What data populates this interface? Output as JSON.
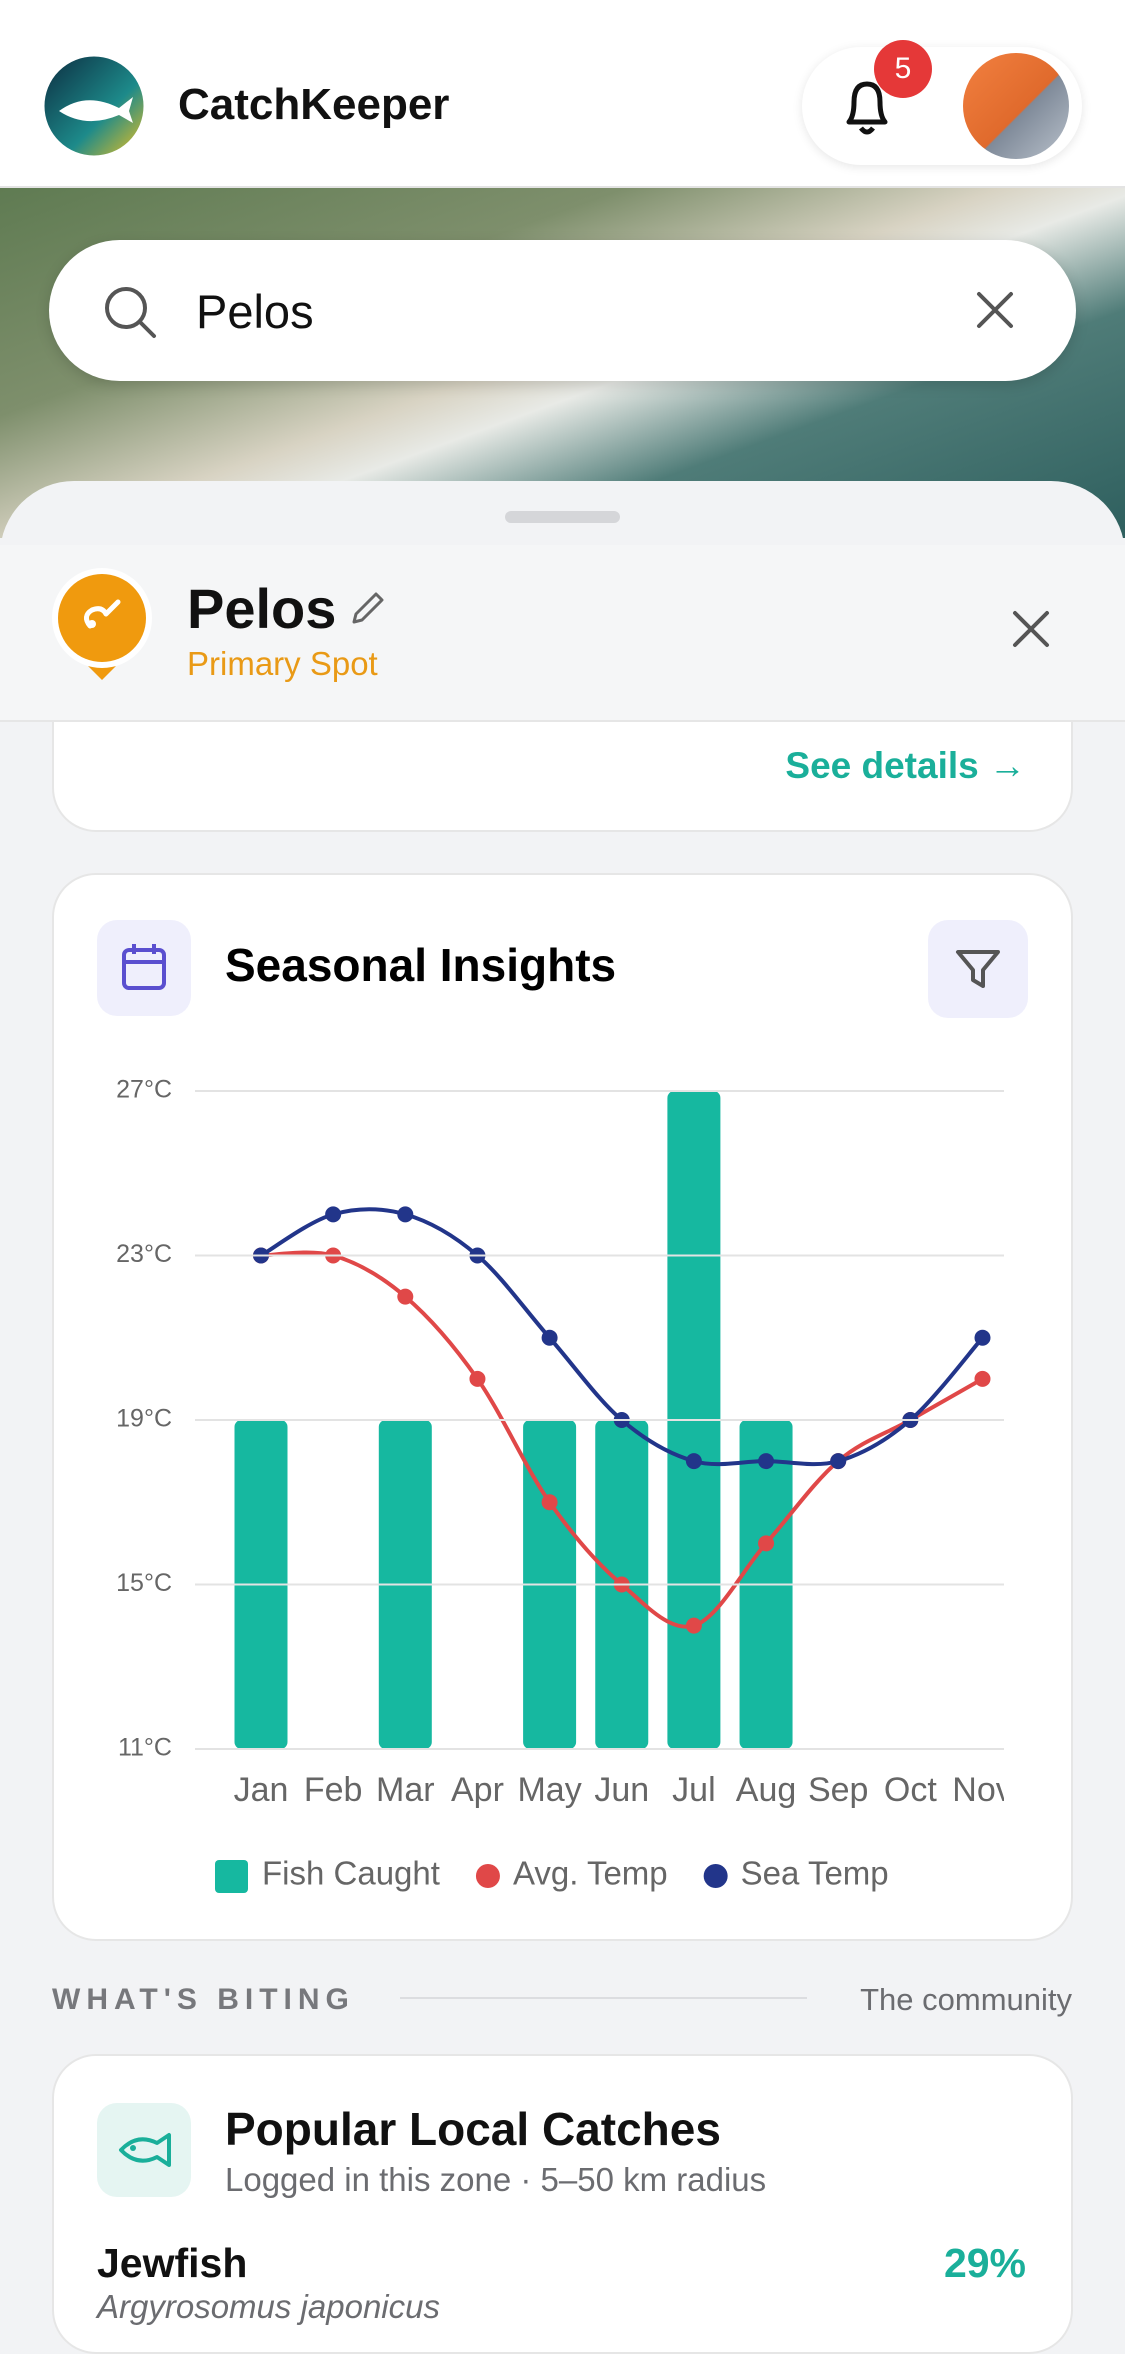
{
  "header": {
    "app_name": "CatchKeeper",
    "notification_count": 5
  },
  "search": {
    "query": "Pelos"
  },
  "spot": {
    "name": "Pelos",
    "subtitle": "Primary Spot",
    "link": "See details →"
  },
  "chart": {
    "type": "bar_line",
    "title": "Seasonal Insights",
    "categories": [
      "Jan",
      "Feb",
      "Mar",
      "Apr",
      "May",
      "Jun",
      "Jul",
      "Aug",
      "Sep",
      "Oct",
      "Nov"
    ],
    "ylim": [
      11,
      27
    ],
    "yticks": [
      {
        "value": 11,
        "label": "11°C"
      },
      {
        "value": 15,
        "label": "15°C"
      },
      {
        "value": 19,
        "label": "19°C"
      },
      {
        "value": 23,
        "label": "23°C"
      },
      {
        "value": 27,
        "label": "27°C"
      }
    ],
    "y2lim": [
      0,
      2
    ],
    "grid": true,
    "series": [
      {
        "name": "Fish Caught",
        "type": "bar",
        "axis": "y2",
        "color": "#16b8a0",
        "values": [
          1,
          0,
          1,
          0,
          1,
          1,
          2,
          1,
          0,
          0,
          0
        ]
      },
      {
        "name": "Avg. Temp",
        "type": "line",
        "color": "#e04848",
        "values": [
          23,
          23,
          22,
          20,
          17,
          15,
          14,
          16,
          18,
          19,
          20
        ]
      },
      {
        "name": "Sea Temp",
        "type": "line",
        "color": "#22358a",
        "values": [
          23,
          24,
          24,
          23,
          21,
          19,
          18,
          18,
          18,
          19,
          21
        ]
      }
    ]
  },
  "section": {
    "title": "WHAT'S BITING",
    "aside": "The community"
  },
  "catches": {
    "title": "Popular Local Catches",
    "subtitle": "Logged in this zone · 5–50 km radius",
    "items": [
      {
        "name": "Jewfish",
        "scientific": "Argyrosomus japonicus",
        "share": "29%"
      }
    ]
  }
}
